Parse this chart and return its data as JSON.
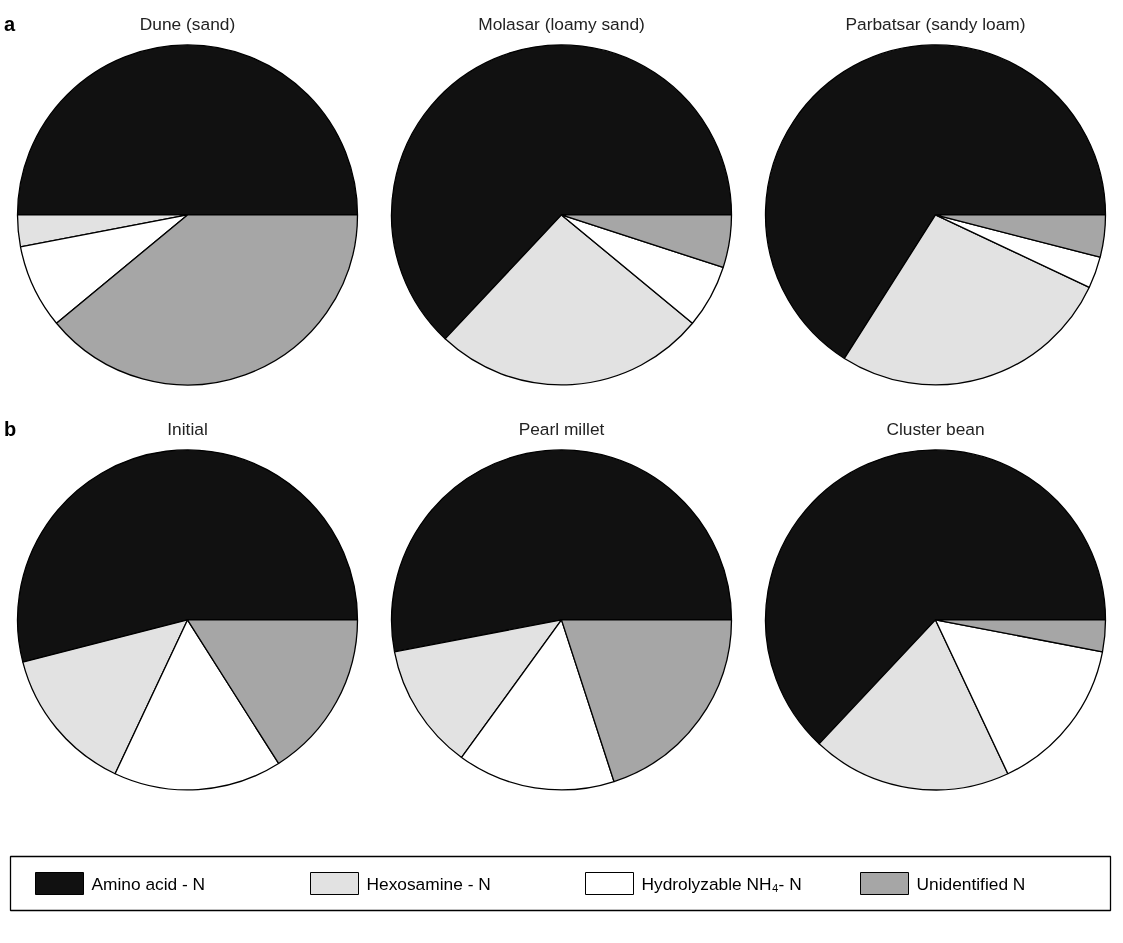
{
  "chart_data": [
    {
      "type": "pie",
      "title": "Dune (sand)",
      "annotations": [
        "a"
      ],
      "legend": "bottom",
      "categories": [
        "Amino acid - N",
        "Hexosamine - N",
        "Hydrolyzable NH₄- N",
        "Unidentified N"
      ],
      "values": [
        50,
        3,
        8,
        39
      ],
      "colors": [
        "#111111",
        "#e2e2e2",
        "#ffffff",
        "#a6a6a6"
      ]
    },
    {
      "type": "pie",
      "title": "Molasar (loamy sand)",
      "categories": [
        null,
        null,
        null,
        null
      ],
      "values": [
        63,
        26,
        6,
        5
      ],
      "colors": [
        "#111111",
        "#e2e2e2",
        "#ffffff",
        "#a6a6a6"
      ]
    },
    {
      "type": "pie",
      "title": "Parbatsar (sandy loam)",
      "categories": [
        null,
        null,
        null,
        null
      ],
      "values": [
        66,
        27,
        3,
        4
      ],
      "colors": [
        "#111111",
        "#e2e2e2",
        "#ffffff",
        "#a6a6a6"
      ]
    },
    {
      "type": "pie",
      "title": "Initial",
      "annotations": [
        "b"
      ],
      "categories": [
        null,
        null,
        null,
        null
      ],
      "values": [
        54,
        14,
        16,
        16
      ],
      "colors": [
        "#111111",
        "#e2e2e2",
        "#ffffff",
        "#a6a6a6"
      ]
    },
    {
      "type": "pie",
      "title": "Pearl millet",
      "categories": [
        null,
        null,
        null,
        null
      ],
      "values": [
        53,
        12,
        15,
        20
      ],
      "colors": [
        "#111111",
        "#e2e2e2",
        "#ffffff",
        "#a6a6a6"
      ]
    },
    {
      "type": "pie",
      "title": "Cluster bean",
      "categories": [
        null,
        null,
        null,
        null
      ],
      "values": [
        63,
        19,
        15,
        3
      ],
      "colors": [
        "#111111",
        "#e2e2e2",
        "#ffffff",
        "#a6a6a6"
      ]
    }
  ]
}
